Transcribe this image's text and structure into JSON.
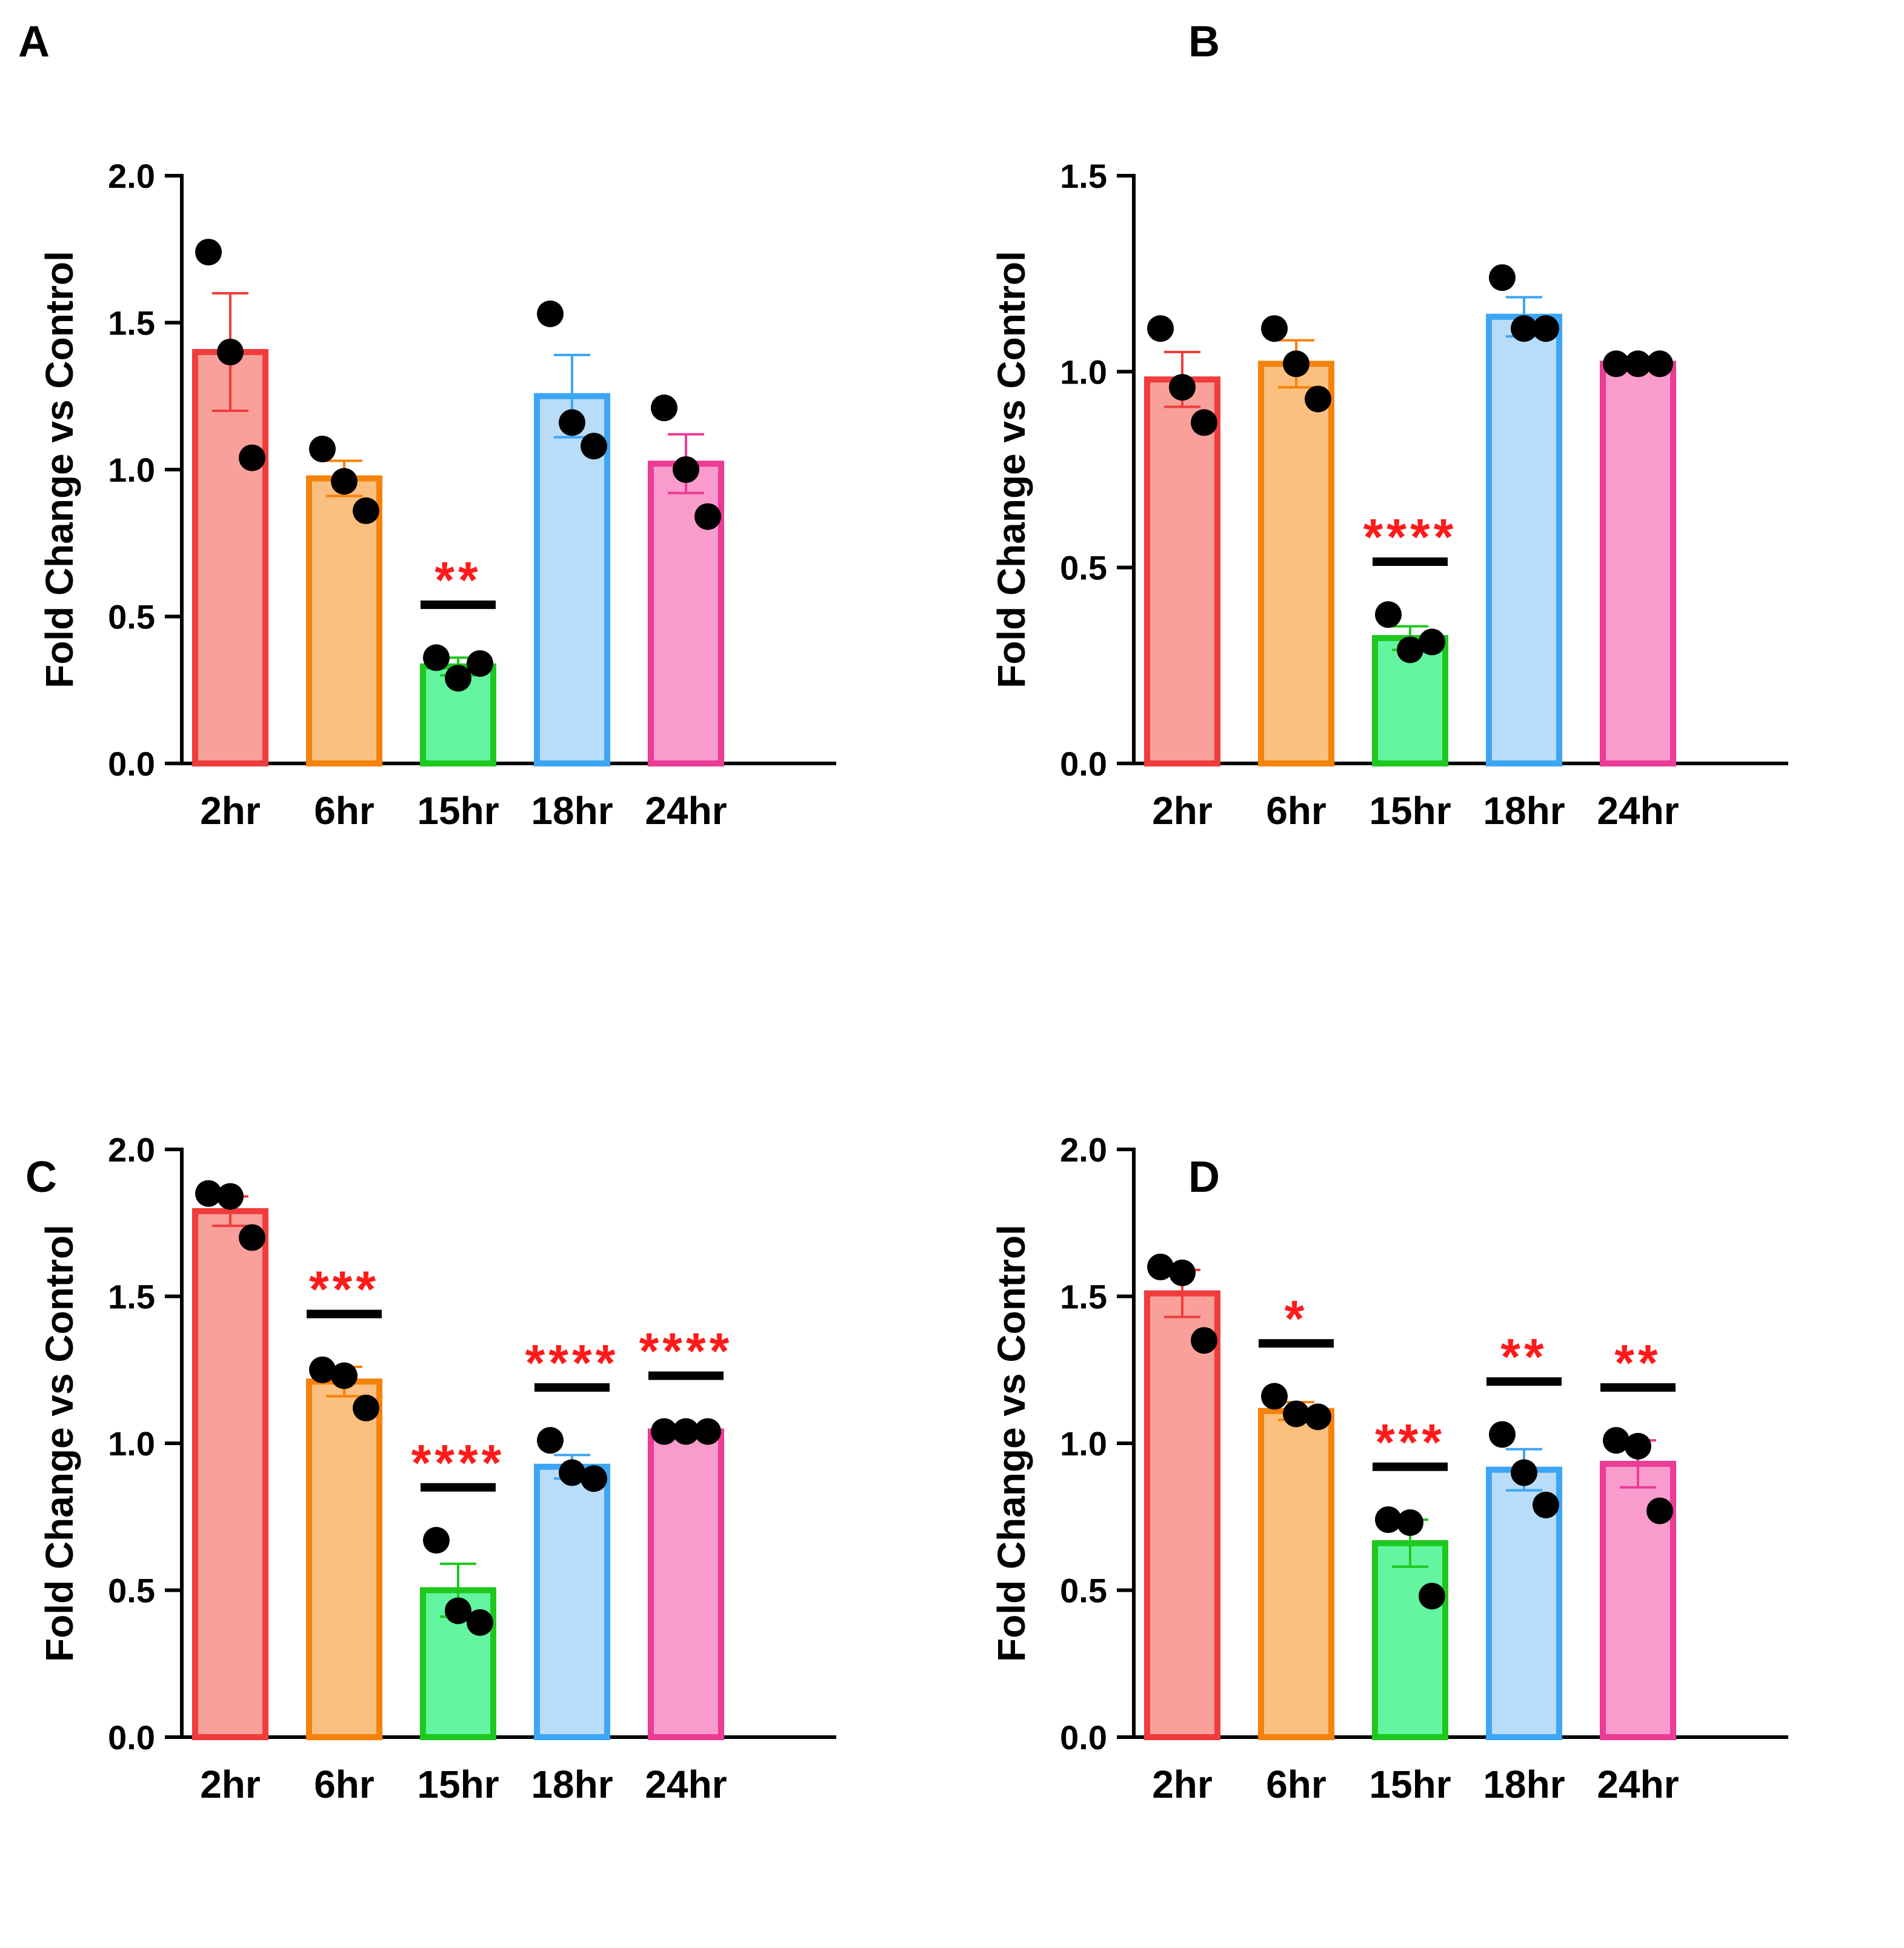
{
  "chart_data": [
    {
      "panel": "A",
      "type": "bar",
      "title": "",
      "xlabel": "",
      "ylabel": "Fold Change vs Control",
      "ylim": [
        0,
        2.0
      ],
      "yticks": [
        "0.0",
        "0.5",
        "1.0",
        "1.5",
        "2.0"
      ],
      "categories": [
        "2hr",
        "6hr",
        "15hr",
        "18hr",
        "24hr"
      ],
      "colors": [
        "#f03c3c",
        "#f5820a",
        "#1ec81e",
        "#3ca5f5",
        "#eb3c96"
      ],
      "fills": [
        "#f9a09a",
        "#fbc07f",
        "#64f5a0",
        "#b9dcf8",
        "#fa9bcd"
      ],
      "values": [
        1.4,
        0.97,
        0.33,
        1.25,
        1.02
      ],
      "errors": [
        0.2,
        0.06,
        0.03,
        0.14,
        0.1
      ],
      "points": [
        [
          1.74,
          1.4,
          1.04
        ],
        [
          1.07,
          0.96,
          0.86
        ],
        [
          0.36,
          0.29,
          0.34
        ],
        [
          1.53,
          1.16,
          1.08
        ],
        [
          1.21,
          1.0,
          0.84
        ]
      ],
      "significance": [
        "",
        "",
        "**",
        "",
        ""
      ]
    },
    {
      "panel": "B",
      "type": "bar",
      "title": "",
      "xlabel": "",
      "ylabel": "Fold Change vs Control",
      "ylim": [
        0,
        1.5
      ],
      "yticks": [
        "0.0",
        "0.5",
        "1.0",
        "1.5"
      ],
      "categories": [
        "2hr",
        "6hr",
        "15hr",
        "18hr",
        "24hr"
      ],
      "colors": [
        "#f03c3c",
        "#f5820a",
        "#1ec81e",
        "#3ca5f5",
        "#eb3c96"
      ],
      "fills": [
        "#f9a09a",
        "#fbc07f",
        "#64f5a0",
        "#b9dcf8",
        "#fa9bcd"
      ],
      "values": [
        0.98,
        1.02,
        0.32,
        1.14,
        1.02
      ],
      "errors": [
        0.07,
        0.06,
        0.03,
        0.05,
        0.01
      ],
      "points": [
        [
          1.11,
          0.96,
          0.87
        ],
        [
          1.11,
          1.02,
          0.93
        ],
        [
          0.38,
          0.29,
          0.31
        ],
        [
          1.24,
          1.11,
          1.11
        ],
        [
          1.02,
          1.02,
          1.02
        ]
      ],
      "significance": [
        "",
        "",
        "****",
        "",
        ""
      ]
    },
    {
      "panel": "C",
      "type": "bar",
      "title": "",
      "xlabel": "",
      "ylabel": "Fold Change vs Control",
      "ylim": [
        0,
        2.0
      ],
      "yticks": [
        "0.0",
        "0.5",
        "1.0",
        "1.5",
        "2.0"
      ],
      "categories": [
        "2hr",
        "6hr",
        "15hr",
        "18hr",
        "24hr"
      ],
      "colors": [
        "#f03c3c",
        "#f5820a",
        "#1ec81e",
        "#3ca5f5",
        "#eb3c96"
      ],
      "fills": [
        "#f9a09a",
        "#fbc07f",
        "#64f5a0",
        "#b9dcf8",
        "#fa9bcd"
      ],
      "values": [
        1.79,
        1.21,
        0.5,
        0.92,
        1.04
      ],
      "errors": [
        0.05,
        0.05,
        0.09,
        0.04,
        0.01
      ],
      "points": [
        [
          1.85,
          1.84,
          1.7
        ],
        [
          1.25,
          1.23,
          1.12
        ],
        [
          0.67,
          0.43,
          0.39
        ],
        [
          1.01,
          0.9,
          0.88
        ],
        [
          1.04,
          1.04,
          1.04
        ]
      ],
      "significance": [
        "",
        "***",
        "****",
        "****",
        "****"
      ]
    },
    {
      "panel": "D",
      "type": "bar",
      "title": "",
      "xlabel": "",
      "ylabel": "Fold Change vs Control",
      "ylim": [
        0,
        2.0
      ],
      "yticks": [
        "0.0",
        "0.5",
        "1.0",
        "1.5",
        "2.0"
      ],
      "categories": [
        "2hr",
        "6hr",
        "15hr",
        "18hr",
        "24hr"
      ],
      "colors": [
        "#f03c3c",
        "#f5820a",
        "#1ec81e",
        "#3ca5f5",
        "#eb3c96"
      ],
      "fills": [
        "#f9a09a",
        "#fbc07f",
        "#64f5a0",
        "#b9dcf8",
        "#fa9bcd"
      ],
      "values": [
        1.51,
        1.11,
        0.66,
        0.91,
        0.93
      ],
      "errors": [
        0.08,
        0.03,
        0.08,
        0.07,
        0.08
      ],
      "points": [
        [
          1.6,
          1.58,
          1.35
        ],
        [
          1.16,
          1.1,
          1.09
        ],
        [
          0.74,
          0.73,
          0.48
        ],
        [
          1.03,
          0.9,
          0.79
        ],
        [
          1.01,
          0.99,
          0.77
        ]
      ],
      "significance": [
        "",
        "*",
        "***",
        "**",
        "**"
      ]
    }
  ]
}
